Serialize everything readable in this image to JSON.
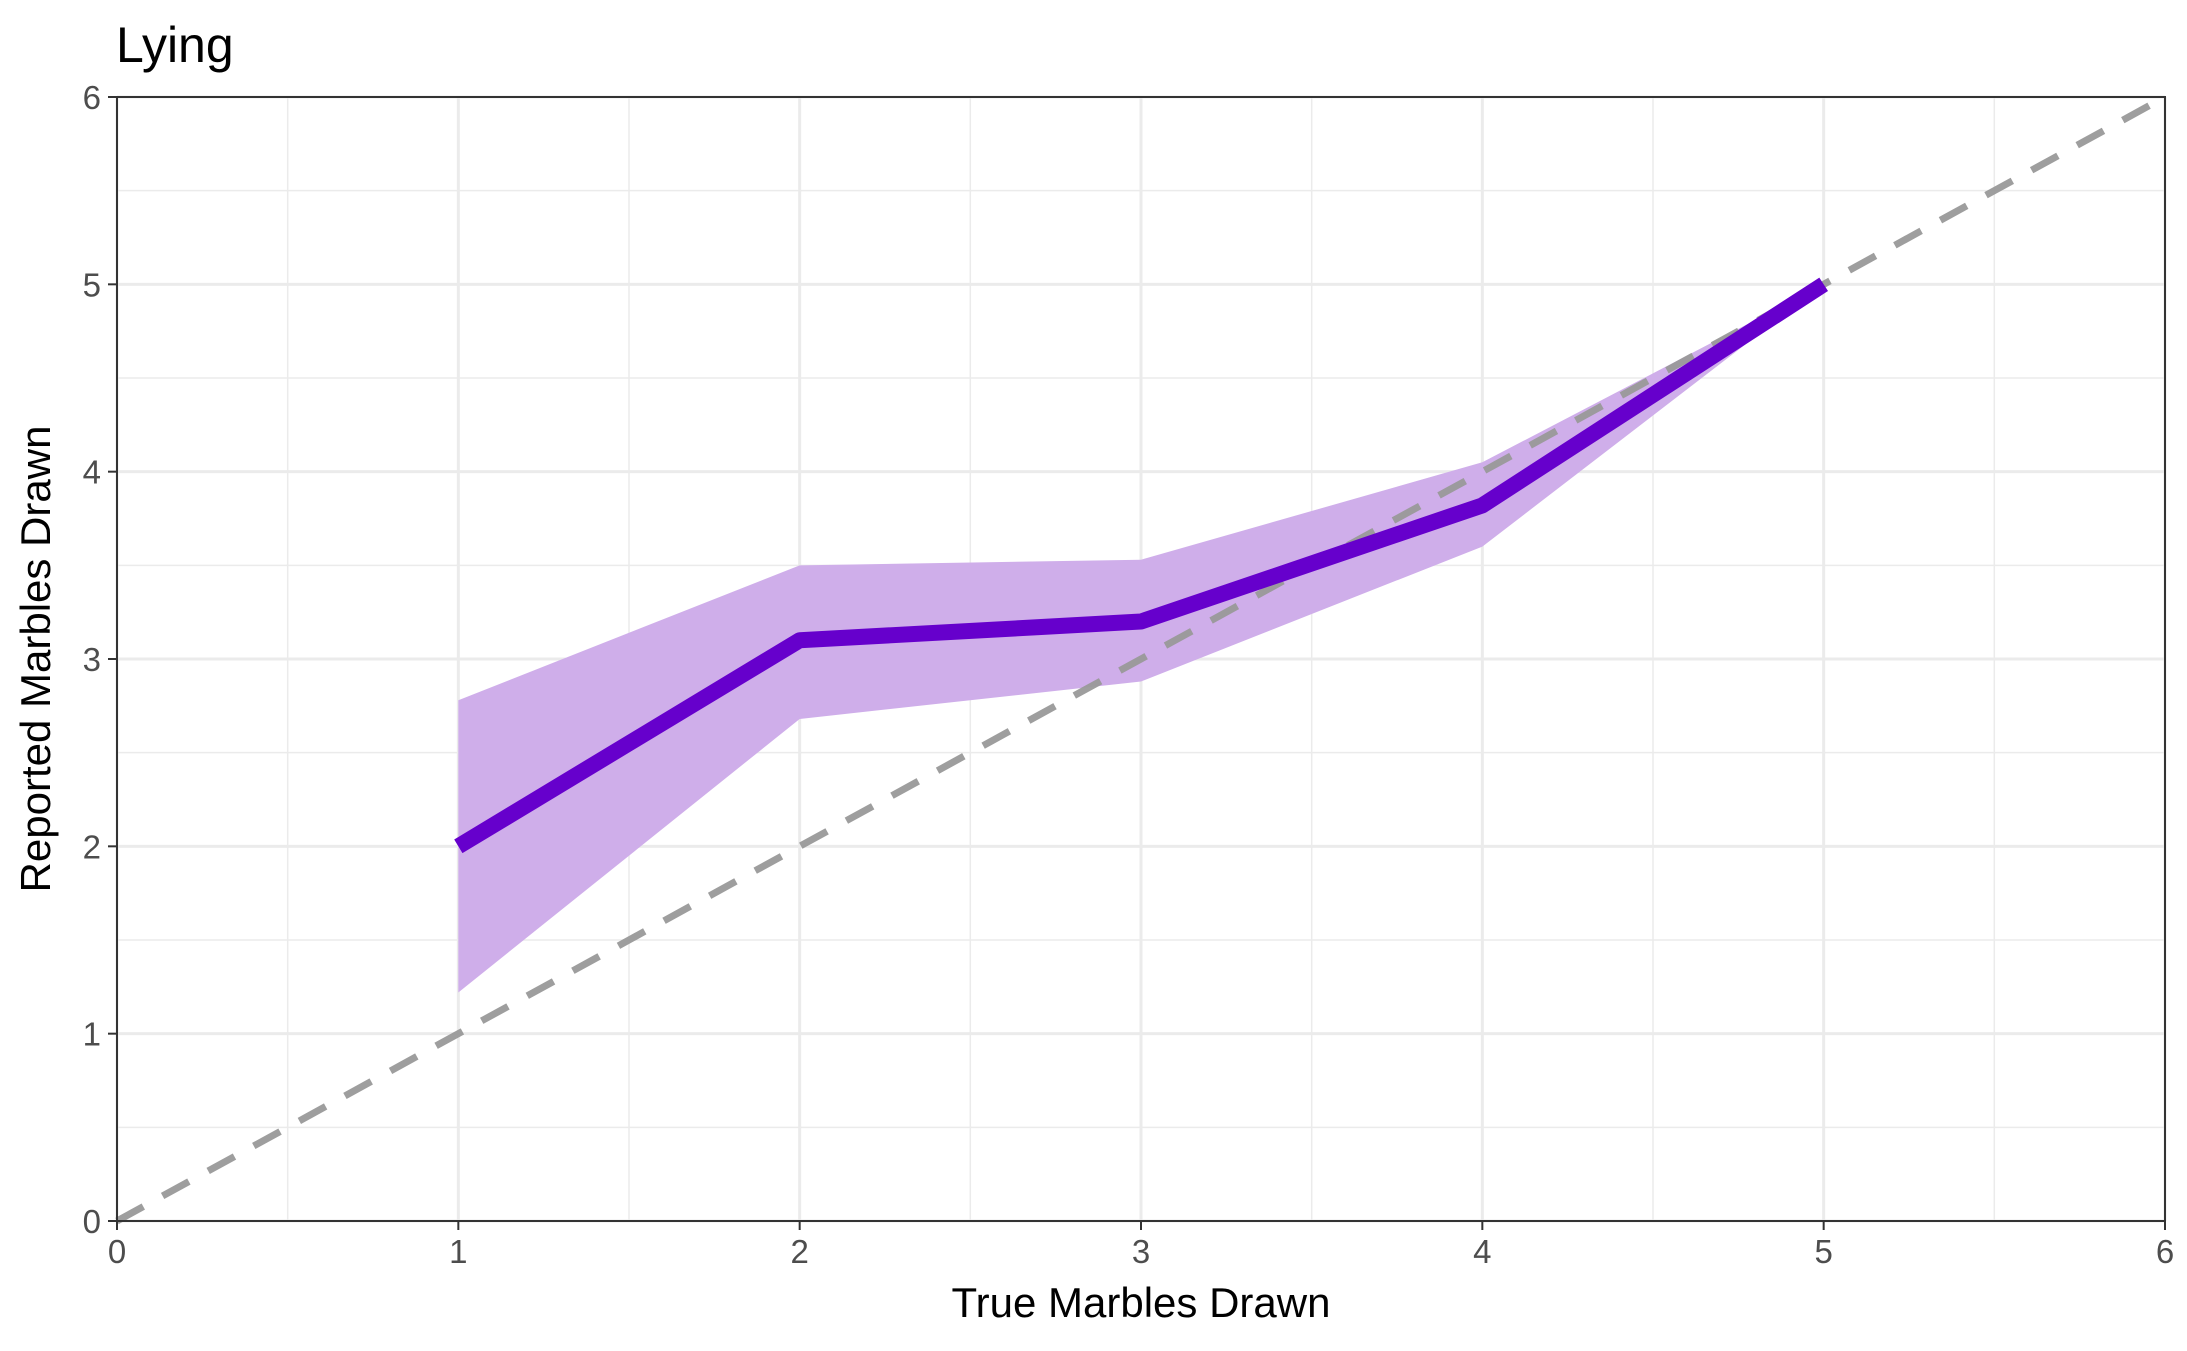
{
  "chart_data": {
    "type": "line",
    "title": "Lying",
    "xlabel": "True Marbles Drawn",
    "ylabel": "Reported Marbles Drawn",
    "xlim": [
      0,
      6
    ],
    "ylim": [
      0,
      6
    ],
    "x_ticks": [
      "0",
      "1",
      "2",
      "3",
      "4",
      "5",
      "6"
    ],
    "y_ticks": [
      "0",
      "1",
      "2",
      "3",
      "4",
      "5",
      "6"
    ],
    "grid": true,
    "series": [
      {
        "x": [
          1,
          2,
          3,
          4,
          5
        ],
        "y": [
          2.0,
          3.1,
          3.2,
          3.82,
          5.0
        ],
        "lower": [
          1.22,
          2.68,
          2.88,
          3.6,
          5.0
        ],
        "upper": [
          2.78,
          3.5,
          3.53,
          4.05,
          5.0
        ],
        "color": "#6600CC",
        "band_color": "#CFAEEA"
      }
    ],
    "reference_line": {
      "x": [
        0,
        6
      ],
      "y": [
        0,
        6
      ],
      "style": "dashed",
      "color": "#999999"
    }
  }
}
